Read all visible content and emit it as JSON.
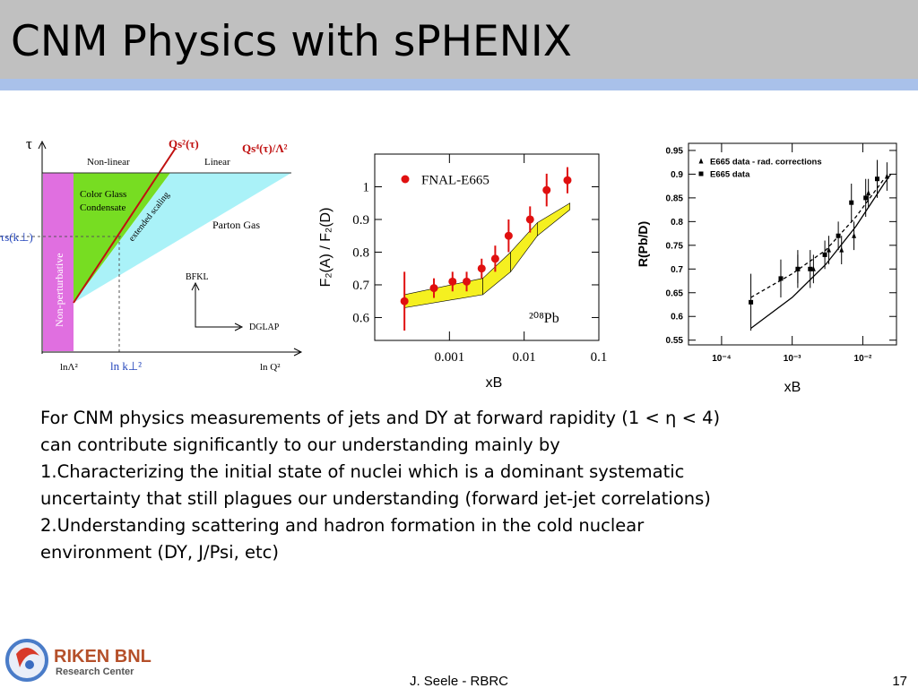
{
  "title": "CNM Physics with sPHENIX",
  "diagram": {
    "axis_y": "τ",
    "axis_x": "ln Q²",
    "qs2": "Qs²(τ)",
    "qs4": "Qs⁴(τ)/Λ²",
    "nonlinear": "Non-linear",
    "linear": "Linear",
    "cgc": [
      "Color Glass",
      "Condensate"
    ],
    "scaling": "extended scaling",
    "parton": "Parton Gas",
    "taus": "τs(k⊥)",
    "nonpert": "Non-perturbative",
    "bfkl": "BFKL",
    "dglap": "DGLAP",
    "lnlambda": "lnΛ²",
    "lnk": "ln k⊥²"
  },
  "chart_data": [
    {
      "type": "scatter",
      "xscale": "log",
      "ylabel": "F₂(A) / F₂(D)",
      "xlabel": "xB",
      "annotation": "²⁰⁸Pb",
      "xlim": [
        0.0001,
        0.1
      ],
      "ylim": [
        0.53,
        1.1
      ],
      "xticks": [
        0.001,
        0.01,
        0.1
      ],
      "yticks": [
        0.6,
        0.7,
        0.8,
        0.9,
        1
      ],
      "series": [
        {
          "name": "FNAL-E665",
          "color": "#e01010",
          "marker": "circle",
          "x": [
            0.00025,
            0.00062,
            0.0011,
            0.0017,
            0.0027,
            0.0041,
            0.0062,
            0.012,
            0.02,
            0.038
          ],
          "values": [
            0.65,
            0.69,
            0.71,
            0.71,
            0.75,
            0.78,
            0.85,
            0.9,
            0.99,
            1.02
          ],
          "errors": [
            0.09,
            0.03,
            0.03,
            0.03,
            0.03,
            0.04,
            0.05,
            0.04,
            0.05,
            0.04
          ]
        }
      ],
      "band": {
        "color": "#f5f020",
        "x": [
          0.00025,
          0.0028,
          0.0066,
          0.015,
          0.041
        ],
        "upper": [
          0.67,
          0.72,
          0.8,
          0.89,
          0.95
        ],
        "lower": [
          0.63,
          0.67,
          0.74,
          0.85,
          0.93
        ]
      }
    },
    {
      "type": "scatter",
      "xscale": "log",
      "ylabel": "R(Pb/D)",
      "xlabel": "xB",
      "xlim": [
        3.4e-05,
        0.03
      ],
      "ylim": [
        0.54,
        0.965
      ],
      "xticks": [
        {
          "value": 0.0001,
          "label": "10⁻⁴"
        },
        {
          "value": 0.001,
          "label": "10⁻³"
        },
        {
          "value": 0.01,
          "label": "10⁻²"
        }
      ],
      "yticks": [
        0.55,
        0.6,
        0.65,
        0.7,
        0.75,
        0.8,
        0.85,
        0.9,
        0.95
      ],
      "series": [
        {
          "name": "E665 data - rad. corrections",
          "color": "#000000",
          "marker": "triangle",
          "x": [
            0.0012,
            0.002,
            0.0033,
            0.005,
            0.0075,
            0.012,
            0.022
          ],
          "values": [
            0.7,
            0.7,
            0.74,
            0.74,
            0.77,
            0.86,
            0.895
          ],
          "errors": [
            0.03,
            0.03,
            0.03,
            0.03,
            0.03,
            0.03,
            0.03
          ]
        },
        {
          "name": "E665 data",
          "color": "#000000",
          "marker": "square",
          "x": [
            0.00026,
            0.00069,
            0.0012,
            0.0018,
            0.0029,
            0.0045,
            0.0069,
            0.011,
            0.016
          ],
          "values": [
            0.63,
            0.68,
            0.7,
            0.7,
            0.73,
            0.77,
            0.84,
            0.85,
            0.89
          ],
          "errors": [
            0.06,
            0.04,
            0.04,
            0.04,
            0.03,
            0.03,
            0.04,
            0.04,
            0.04
          ]
        }
      ],
      "fits": [
        {
          "style": "solid",
          "x": [
            0.00026,
            0.001,
            0.003,
            0.008,
            0.02,
            0.025
          ],
          "values": [
            0.575,
            0.64,
            0.71,
            0.79,
            0.88,
            0.9
          ]
        },
        {
          "style": "dashed",
          "x": [
            0.00026,
            0.001,
            0.003,
            0.008,
            0.02
          ],
          "values": [
            0.64,
            0.69,
            0.74,
            0.81,
            0.89
          ]
        }
      ]
    }
  ],
  "body": [
    "For CNM physics measurements of jets and DY at forward rapidity (1 < η < 4)",
    "can contribute significantly to our understanding mainly by",
    "1.Characterizing the initial state of nuclei which is a dominant systematic",
    "uncertainty that still plagues our understanding (forward jet-jet correlations)",
    "2.Understanding scattering and hadron formation in the cold nuclear",
    "environment (DY, J/Psi, etc)"
  ],
  "footer": {
    "logo": "RIKEN BNL",
    "logo_sub": "Research Center",
    "author": "J. Seele - RBRC",
    "page": "17"
  }
}
